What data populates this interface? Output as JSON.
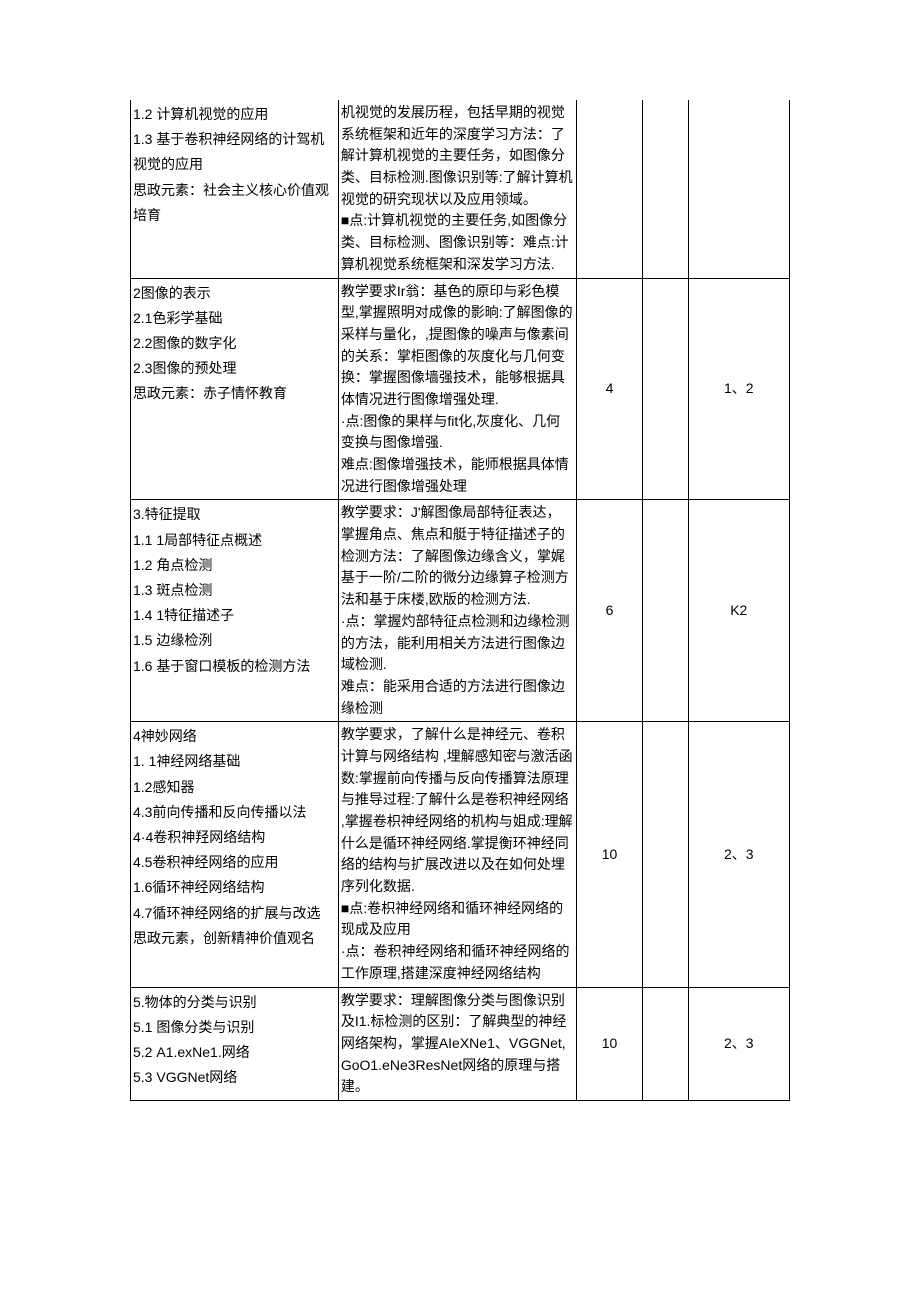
{
  "rows": [
    {
      "topic": "1.2   计算机视觉的应用\n1.3   基于卷积神经网络的计驾机视觉的应用\n思政元素：社会主义核心价值观培育",
      "req": "机视觉的发展历程，包括早期的视觉系统框架和近年的深度学习方法：了解计算机视觉的主要任务，如图像分类、目标检测.图像识别等:了解计算机视觉的研究现状以及应用领域。\n■点:计算机视觉的主要任务,如图像分类、目标检测、图像识别等：难点:计算机视觉系统框架和深发学习方法.",
      "c3": "",
      "c4": "",
      "c5": ""
    },
    {
      "topic": "2图像的表示\n2.1色彩学基础\n2.2图像的数字化\n2.3图像的预处理\n思政元素：赤子情怀教育",
      "req": "教学要求Ir翁：基色的原印与彩色模型,掌握照明对成像的影晌:了解图像的采样与量化，,提图像的噪声与像素间的关系：掌柜图像的灰度化与几何变换：掌握图像墙强技术，能够根据具体情况进行图像增强处理.\n·点:图像的果样与fit化,灰度化、几何变换与图像增强.\n难点:图像增强技术，能师根据具体情况进行图像增强处理",
      "c3": "4",
      "c4": "",
      "c5": "1、2"
    },
    {
      "topic": "3.特征提取\n1.1        1局部特征点概述\n1.2   角点检测\n1.3   斑点检测\n1.4        1特征描述子\n1.5  边缘检洌\n1.6   基于窗口模板的检测方法",
      "req": "教学要求：J'解图像局部特征表达，掌握角点、焦点和艇于特征描述子的检测方法：了解图像边缘含义，掌娓基于一阶/二阶的微分边缘算子检测方法和基于床楼,欧版的检测方法.\n·点：掌握灼部特征点检测和边缘检测的方法，能利用相关方法进行图像边域检测.\n难点：能采用合适的方法进行图像边缘检测",
      "c3": "6",
      "c4": "",
      "c5": "K2"
    },
    {
      "topic": "4神妙网络\n1. 1神经网络基础\n1.2感知器\n4.3前向传播和反向传播以法\n4·4卷积神羟网络结构\n4.5卷积神经网络的应用\n1.6循环神经网络结构\n4.7循环神经网络的扩展与改选\n思政元素，创新精神价值观名",
      "req": "教学要求，了解什么是神经元、卷积计算与网络结构 ,埋解感知密与激活函数:掌握前向传播与反向传播算法原理与推导过程:了解什么是卷积神经网络 ,掌握卷枳神经网络的机构与姐成:理解什么是循环神经网络.掌提衡环神经同络的结构与扩展改进以及在如何处埋序列化数据.\n■点:卷枳神经网络和循环神经网络的现成及应用\n·点：卷积神经网络和循环神经网络的工作原理,搭建深度神经网络结构",
      "c3": "10",
      "c4": "",
      "c5": "2、3"
    },
    {
      "topic": "5.物体的分类与识别\n5.1   图像分类与识别\n5.2   A1.exNe1.网络\n5.3   VGGNet网络",
      "req": "教学要求：理解图像分类与图像识别及I1.标检测的区别：了解典型的神经网络架构，掌握AIeXNe1、VGGNet,GoO1.eNe3ResNet网络的原理与搭建。",
      "c3": "10",
      "c4": "",
      "c5": "2、3"
    }
  ]
}
